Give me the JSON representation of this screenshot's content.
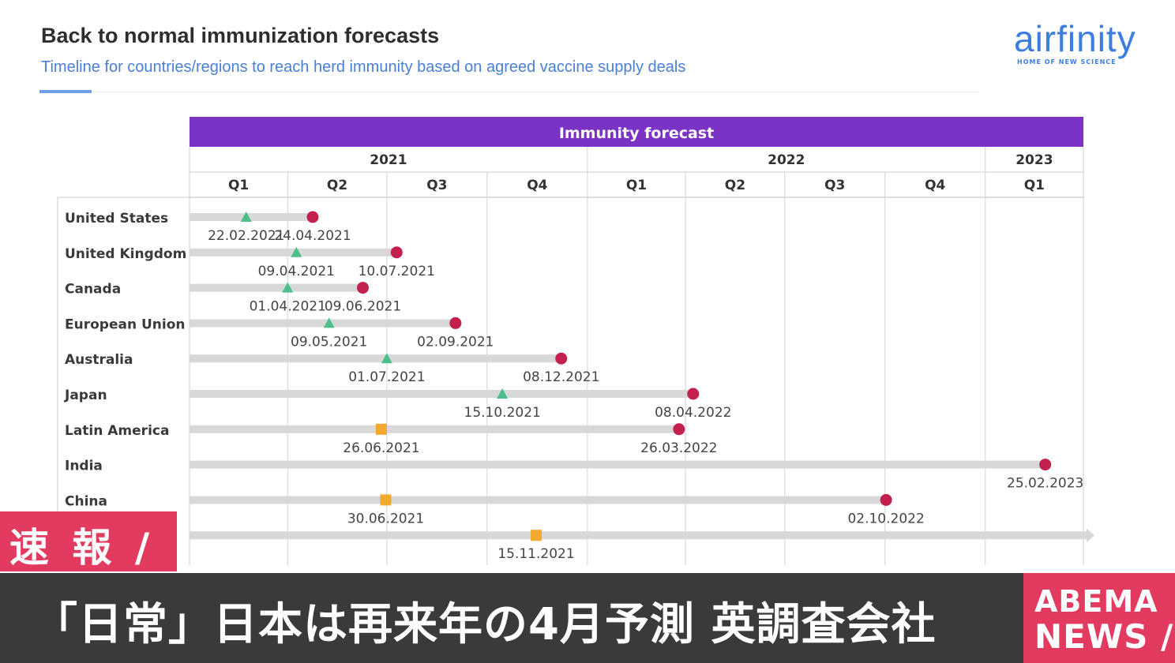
{
  "header": {
    "title": "Back to normal immunization forecasts",
    "subtitle": "Timeline for countries/regions to reach herd immunity based on agreed vaccine supply deals"
  },
  "logo": {
    "name": "airfinity",
    "tagline": "HOME OF NEW SCIENCE"
  },
  "colors": {
    "header_band": "#7a33c4",
    "bar": "#d8d8d8",
    "triangle_marker": "#4cbf8c",
    "square_marker": "#f0aa30",
    "circle_marker": "#c4204e",
    "brand_blue": "#3c7ee0",
    "news_red": "#e33b5f"
  },
  "chart_data": {
    "type": "timeline",
    "title": "Immunity forecast",
    "years": [
      {
        "label": "2021",
        "quarters": 4
      },
      {
        "label": "2022",
        "quarters": 4
      },
      {
        "label": "2023",
        "quarters": 1
      }
    ],
    "quarters": [
      "Q1",
      "Q2",
      "Q3",
      "Q4",
      "Q1",
      "Q2",
      "Q3",
      "Q4",
      "Q1"
    ],
    "x_range": [
      "2021-01-01",
      "2023-04-01"
    ],
    "rows": [
      {
        "label": "United States",
        "start": {
          "date": "22.02.2021",
          "marker": "triangle"
        },
        "end": {
          "date": "24.04.2021",
          "marker": "circle"
        }
      },
      {
        "label": "United Kingdom",
        "start": {
          "date": "09.04.2021",
          "marker": "triangle"
        },
        "end": {
          "date": "10.07.2021",
          "marker": "circle"
        }
      },
      {
        "label": "Canada",
        "start": {
          "date": "01.04.2021",
          "marker": "triangle"
        },
        "end": {
          "date": "09.06.2021",
          "marker": "circle"
        }
      },
      {
        "label": "European Union",
        "start": {
          "date": "09.05.2021",
          "marker": "triangle"
        },
        "end": {
          "date": "02.09.2021",
          "marker": "circle"
        }
      },
      {
        "label": "Australia",
        "start": {
          "date": "01.07.2021",
          "marker": "triangle"
        },
        "end": {
          "date": "08.12.2021",
          "marker": "circle"
        }
      },
      {
        "label": "Japan",
        "start": {
          "date": "15.10.2021",
          "marker": "triangle"
        },
        "end": {
          "date": "08.04.2022",
          "marker": "circle"
        }
      },
      {
        "label": "Latin America",
        "start": {
          "date": "26.06.2021",
          "marker": "square"
        },
        "end": {
          "date": "26.03.2022",
          "marker": "circle"
        }
      },
      {
        "label": "India",
        "start": null,
        "end": {
          "date": "25.02.2023",
          "marker": "circle"
        }
      },
      {
        "label": "China",
        "start": {
          "date": "30.06.2021",
          "marker": "square"
        },
        "end": {
          "date": "02.10.2022",
          "marker": "circle"
        }
      },
      {
        "label": "",
        "start": {
          "date": "15.11.2021",
          "marker": "square"
        },
        "end": null,
        "arrow": true
      }
    ]
  },
  "overlay": {
    "flash_label": "速 報 /",
    "headline": "「日常」日本は再来年の4月予測 英調査会社",
    "brand_line1": "ABEMA",
    "brand_line2": "NEWS /"
  }
}
